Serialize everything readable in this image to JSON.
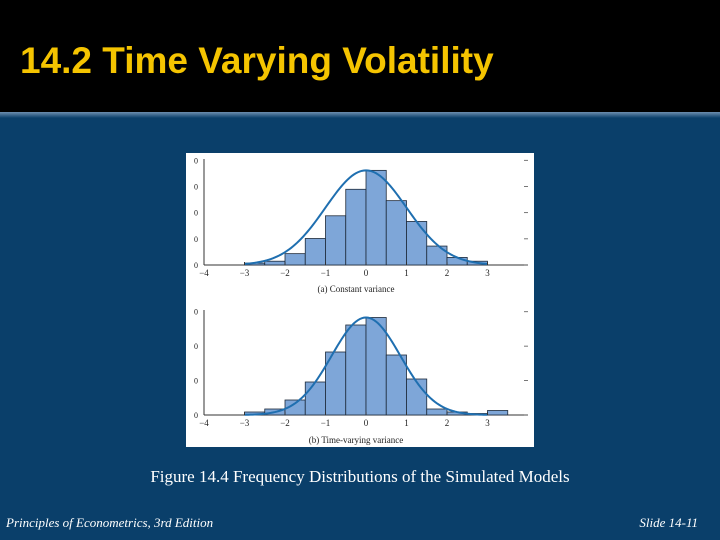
{
  "slide": {
    "title": "14.2 Time Varying Volatility",
    "caption": "Figure 14.4 Frequency Distributions of the Simulated Models",
    "footer_left": "Principles of Econometrics, 3rd Edition",
    "footer_right": "Slide 14-11"
  },
  "colors": {
    "title": "#f5c400",
    "background": "#0a3f6a",
    "bar_fill": "#7ea6d8",
    "curve": "#1f6fb0"
  },
  "chart_data": [
    {
      "type": "bar",
      "title": "",
      "xlabel": "(a) Constant variance",
      "ylabel": "",
      "xlim": [
        -4,
        4
      ],
      "xticks": [
        "−4",
        "−3",
        "−2",
        "−1",
        "0",
        "1",
        "2",
        "3"
      ],
      "yticks": [
        "0",
        "0",
        "0",
        "0",
        "0"
      ],
      "bin_edges": [
        -3.5,
        -3.0,
        -2.5,
        -2.0,
        -1.5,
        -1.0,
        -0.5,
        0.0,
        0.5,
        1.0,
        1.5,
        2.0,
        2.5,
        3.0,
        3.5
      ],
      "values": [
        0.0,
        0.01,
        0.02,
        0.06,
        0.14,
        0.26,
        0.4,
        0.5,
        0.34,
        0.23,
        0.1,
        0.04,
        0.02,
        0.0
      ],
      "curve": "normal density",
      "grid": false
    },
    {
      "type": "bar",
      "title": "",
      "xlabel": "(b) Time-varying variance",
      "ylabel": "",
      "xlim": [
        -4,
        4
      ],
      "xticks": [
        "−4",
        "−3",
        "−2",
        "−1",
        "0",
        "1",
        "2",
        "3"
      ],
      "yticks": [
        "0",
        "0",
        "0",
        "0"
      ],
      "bin_edges": [
        -3.0,
        -2.5,
        -2.0,
        -1.5,
        -1.0,
        -0.5,
        0.0,
        0.5,
        1.0,
        1.5,
        2.0,
        2.5,
        3.0,
        3.5
      ],
      "values": [
        0.02,
        0.04,
        0.1,
        0.22,
        0.42,
        0.6,
        0.65,
        0.4,
        0.24,
        0.04,
        0.02,
        0.01,
        0.03
      ],
      "curve": "normal density",
      "grid": false
    }
  ]
}
